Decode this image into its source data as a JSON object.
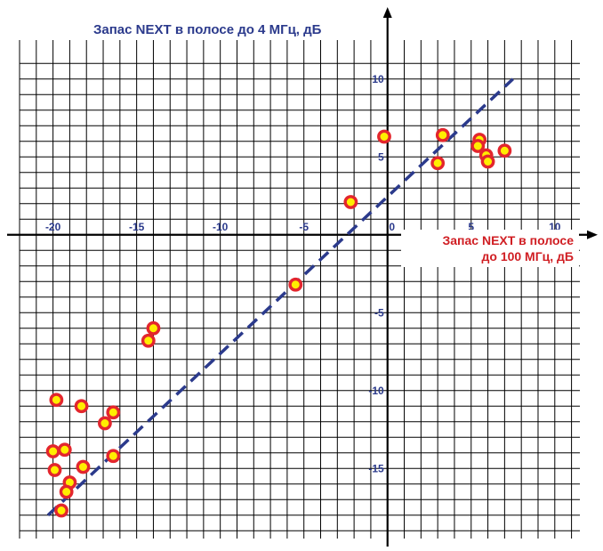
{
  "chart_data": {
    "type": "scatter",
    "title": "",
    "ylabel": "Запас NEXT в полосе до 4 МГц, дБ",
    "xlabel_lines": [
      "Запас NEXT в полосе",
      "до 100 МГц, дБ"
    ],
    "xlim": [
      -22,
      11.5
    ],
    "ylim": [
      -19.5,
      12.5
    ],
    "grid": true,
    "x_ticks": [
      -20,
      -15,
      -10,
      -5,
      0,
      5,
      10
    ],
    "y_ticks": [
      10,
      5,
      -5,
      -10,
      -15
    ],
    "x_tick_labels": [
      "-20",
      "-15",
      "-10",
      "-5",
      "0",
      "5",
      "10"
    ],
    "y_tick_labels": [
      "10",
      "5",
      "-5",
      "-10",
      "-15"
    ],
    "trend_line": {
      "from": [
        -20.3,
        -18.0
      ],
      "to": [
        7.5,
        10.0
      ]
    },
    "points": [
      {
        "x": -0.2,
        "y": 6.3
      },
      {
        "x": 3.3,
        "y": 6.4
      },
      {
        "x": 5.5,
        "y": 6.1
      },
      {
        "x": 5.4,
        "y": 5.7
      },
      {
        "x": 5.9,
        "y": 5.1
      },
      {
        "x": 6.0,
        "y": 4.7
      },
      {
        "x": 7.0,
        "y": 5.4
      },
      {
        "x": 3.0,
        "y": 4.6
      },
      {
        "x": -2.2,
        "y": 2.1
      },
      {
        "x": -5.5,
        "y": -3.2
      },
      {
        "x": -14.0,
        "y": -6.0
      },
      {
        "x": -14.3,
        "y": -6.8
      },
      {
        "x": -19.8,
        "y": -10.6
      },
      {
        "x": -18.3,
        "y": -11.0
      },
      {
        "x": -16.4,
        "y": -11.4
      },
      {
        "x": -16.9,
        "y": -12.1
      },
      {
        "x": -16.4,
        "y": -14.2
      },
      {
        "x": -20.0,
        "y": -13.9
      },
      {
        "x": -19.3,
        "y": -13.8
      },
      {
        "x": -18.2,
        "y": -14.9
      },
      {
        "x": -19.9,
        "y": -15.1
      },
      {
        "x": -19.0,
        "y": -15.9
      },
      {
        "x": -19.2,
        "y": -16.5
      },
      {
        "x": -19.5,
        "y": -17.7
      }
    ],
    "colors": {
      "grid": "#000000",
      "axis": "#000000",
      "trend": "#2b3a8c",
      "point_fill": "#ffee00",
      "point_stroke": "#e3262d",
      "tick_text": "#2b3a8c",
      "y_title": "#2b3a8c",
      "x_title": "#d01e23"
    }
  }
}
